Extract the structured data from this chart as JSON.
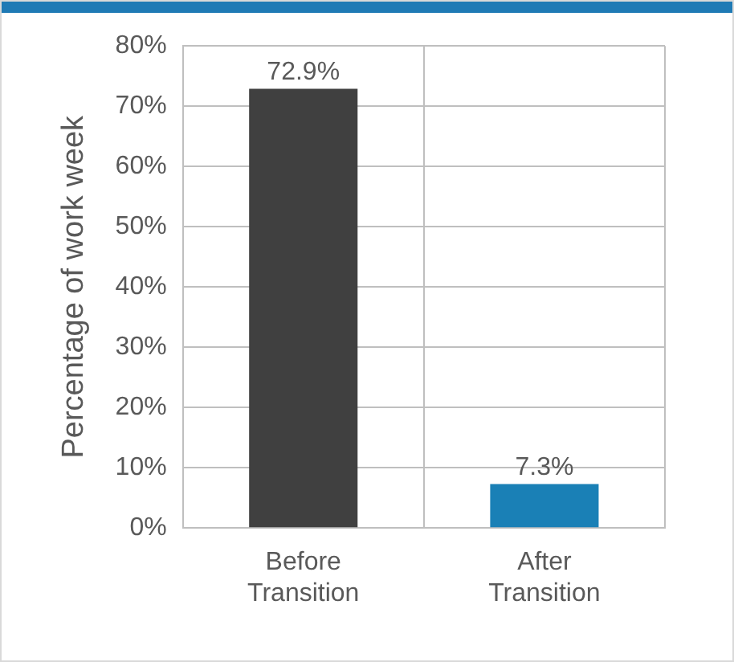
{
  "chart_data": {
    "type": "bar",
    "ylabel": "Percentage of work week",
    "categories": [
      "Before Transition",
      "After Transition"
    ],
    "values": [
      72.9,
      7.3
    ],
    "colors": [
      "#404040",
      "#1a80b6"
    ],
    "ylim": [
      0,
      80
    ],
    "yticks": [
      {
        "value": 0,
        "label": "0%"
      },
      {
        "value": 10,
        "label": "10%"
      },
      {
        "value": 20,
        "label": "20%"
      },
      {
        "value": 30,
        "label": "30%"
      },
      {
        "value": 40,
        "label": "40%"
      },
      {
        "value": 50,
        "label": "50%"
      },
      {
        "value": 60,
        "label": "60%"
      },
      {
        "value": 70,
        "label": "70%"
      },
      {
        "value": 80,
        "label": "80%"
      }
    ],
    "value_labels": [
      "72.9%",
      "7.3%"
    ],
    "grid": true,
    "legend": false
  }
}
